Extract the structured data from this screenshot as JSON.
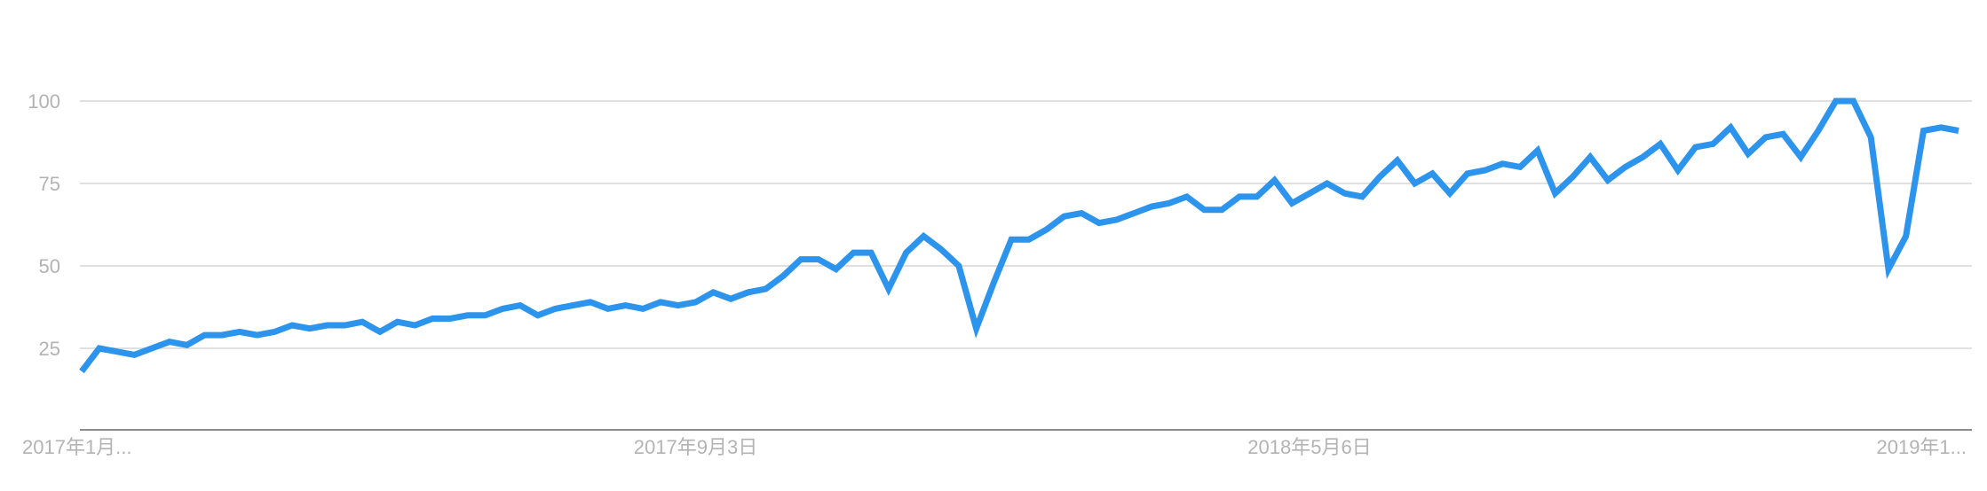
{
  "chart_data": {
    "type": "line",
    "title": "",
    "xlabel": "",
    "ylabel": "",
    "ylim": [
      0,
      125
    ],
    "yticks": [
      25,
      50,
      75,
      100
    ],
    "grid": true,
    "legend": "none",
    "line_color": "#2d94ed",
    "grid_color": "#e0e0e0",
    "axis_color": "#8c8c8c",
    "tick_label_color": "#b3b3b3",
    "x_tick_labels": [
      {
        "label": "2017年1月...",
        "index": 0,
        "anchor": "start"
      },
      {
        "label": "2017年9月3日",
        "index": 35,
        "anchor": "middle"
      },
      {
        "label": "2018年5月6日",
        "index": 70,
        "anchor": "middle"
      },
      {
        "label": "2019年1...",
        "index": 106,
        "anchor": "end"
      }
    ],
    "series": [
      {
        "values": [
          18,
          25,
          24,
          23,
          25,
          27,
          26,
          29,
          29,
          30,
          29,
          30,
          32,
          31,
          32,
          32,
          33,
          30,
          33,
          32,
          34,
          34,
          35,
          35,
          37,
          38,
          35,
          37,
          38,
          39,
          37,
          38,
          37,
          39,
          38,
          39,
          42,
          40,
          42,
          43,
          47,
          52,
          52,
          49,
          54,
          54,
          43,
          54,
          59,
          55,
          50,
          31,
          45,
          58,
          58,
          61,
          65,
          66,
          63,
          64,
          66,
          68,
          69,
          71,
          67,
          67,
          71,
          71,
          76,
          69,
          72,
          75,
          72,
          71,
          77,
          82,
          75,
          78,
          72,
          78,
          79,
          81,
          80,
          85,
          72,
          77,
          83,
          76,
          80,
          83,
          87,
          79,
          86,
          87,
          92,
          84,
          89,
          90,
          83,
          91,
          100,
          100,
          89,
          49,
          59,
          91,
          92,
          91
        ]
      }
    ]
  }
}
